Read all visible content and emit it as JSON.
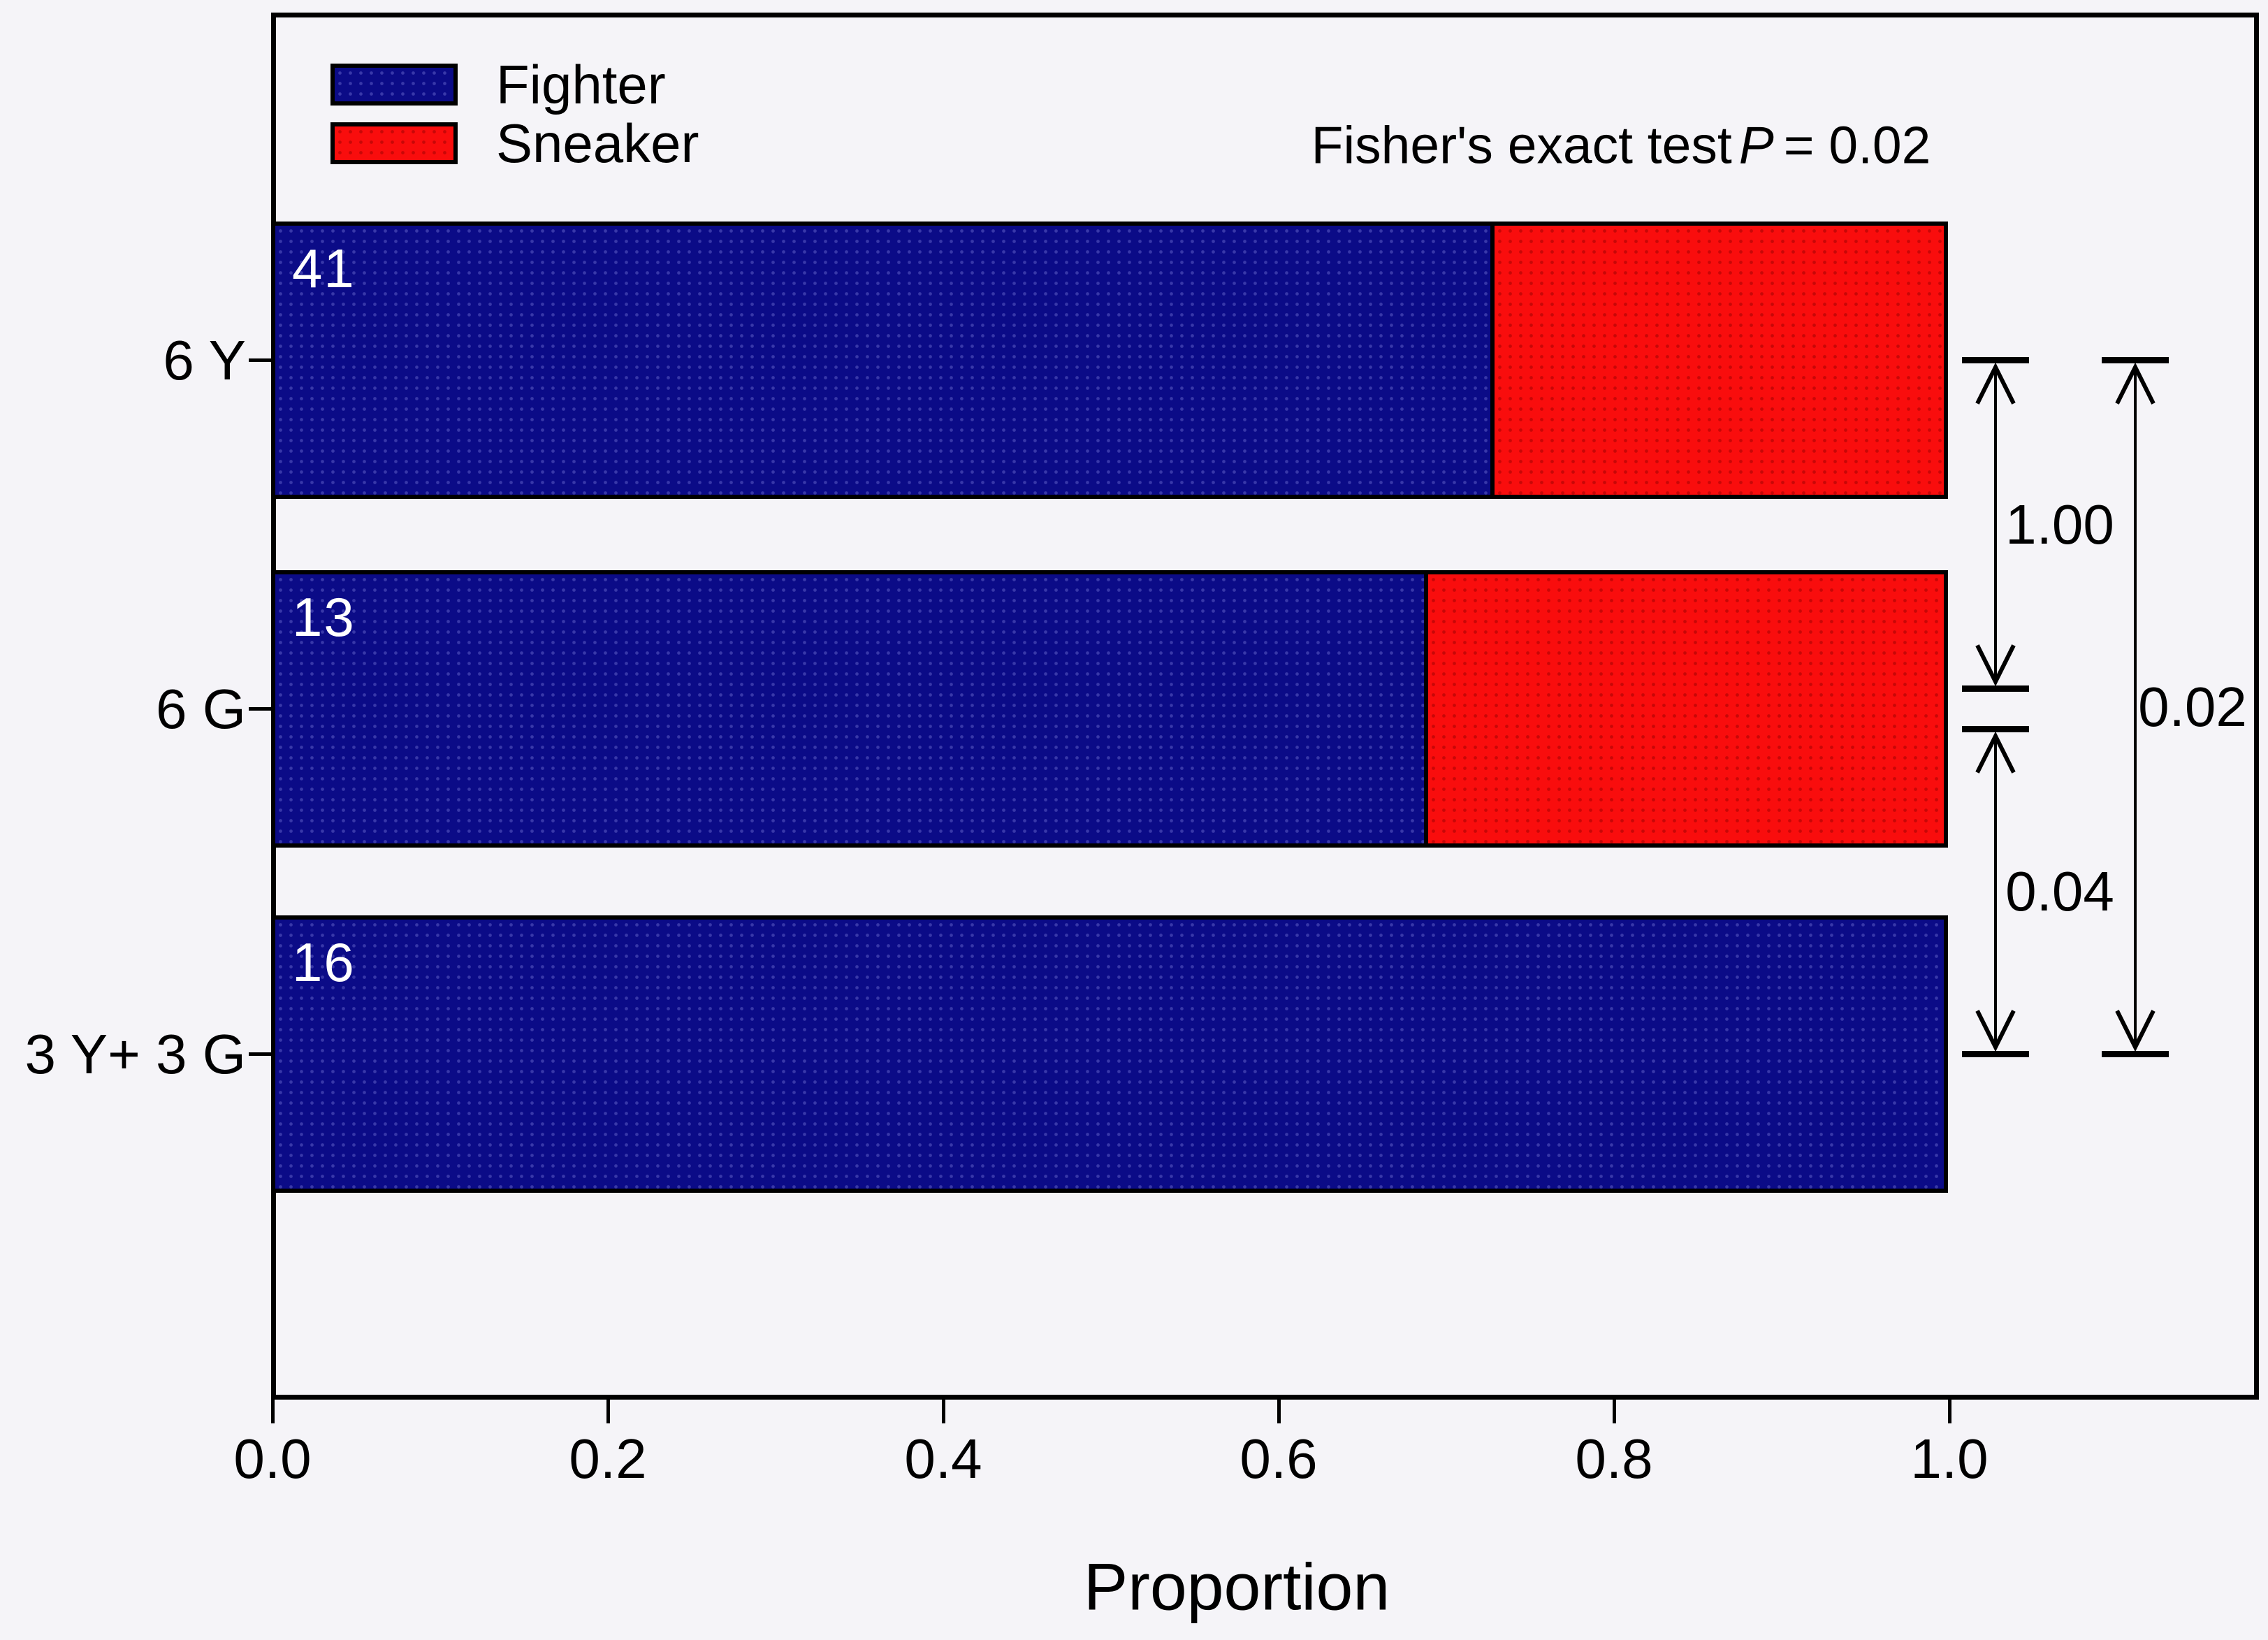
{
  "chart_data": {
    "type": "bar",
    "orientation": "horizontal-stacked",
    "title": "",
    "xlabel": "Proportion",
    "ylabel": "",
    "categories": [
      "6 Y",
      "6 G",
      "3 Y+ 3 G"
    ],
    "series": [
      {
        "name": "Fighter",
        "color": "#0b0b87",
        "values": [
          0.73,
          0.69,
          1.0
        ]
      },
      {
        "name": "Sneaker",
        "color": "#f90d0d",
        "values": [
          0.27,
          0.31,
          0.0
        ]
      }
    ],
    "bar_count_labels": [
      "41",
      "13",
      "16"
    ],
    "xticks": [
      "0.0",
      "0.2",
      "0.4",
      "0.6",
      "0.8",
      "1.0"
    ],
    "xlim": [
      0.0,
      1.185
    ],
    "grid": false,
    "legend_position": "top-left",
    "annotation": {
      "prefix": "Fisher's exact test",
      "stat": "P",
      "suffix": "= 0.02"
    },
    "comparisons": [
      {
        "between": [
          "6 Y",
          "6 G"
        ],
        "p": "1.00"
      },
      {
        "between": [
          "6 G",
          "3 Y+ 3 G"
        ],
        "p": "0.04"
      },
      {
        "between": [
          "6 Y",
          "3 Y+ 3 G"
        ],
        "p": "0.02"
      }
    ],
    "colors": {
      "fighter_navy": "#0b0b87",
      "sneaker_red": "#f90d0d",
      "frame_black": "#000000",
      "count_label_white": "#ffffff",
      "background": "#f5f4f8"
    }
  }
}
